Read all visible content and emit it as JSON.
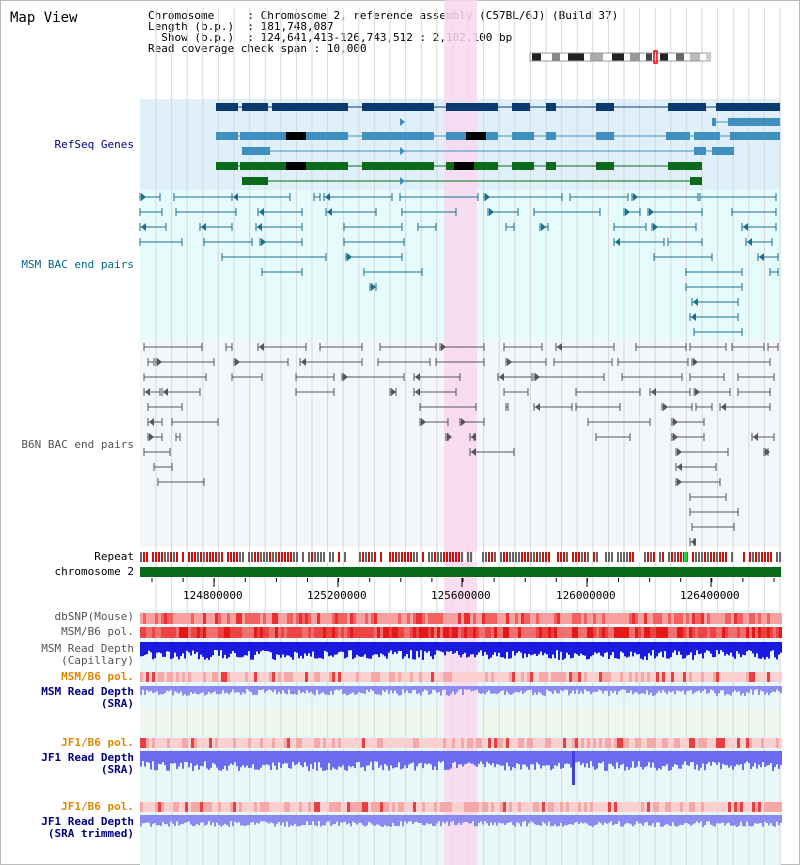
{
  "title": "Map View",
  "info": {
    "chromosome_label": "Chromosome",
    "chromosome_value": "Chromosome 2, reference assembly (C57BL/6J) (Build 37)",
    "length_label": "Length (b.p.)",
    "length_value": "181,748,087",
    "show_label": "Show (b.p.)",
    "show_value": "124,641,413-126,743,512 : 2,102,100 bp",
    "coverage_label": "Read coverage check span",
    "coverage_value": "10,000"
  },
  "tracks": {
    "refseq": "RefSeq Genes",
    "msm_bac": "MSM BAC end pairs",
    "b6n_bac": "B6N BAC end pairs",
    "repeat": "Repeat",
    "chromosome": "chromosome 2",
    "dbsnp": "dbSNP(Mouse)",
    "msm_b6_pol": "MSM/B6 pol.",
    "msm_depth_cap_1": "MSM Read Depth",
    "msm_depth_cap_2": "(Capillary)",
    "msm_b6_pol_2": "MSM/B6 pol.",
    "msm_depth_sra_1": "MSM Read Depth",
    "msm_depth_sra_2": "(SRA)",
    "jf1_b6_pol": "JF1/B6 pol.",
    "jf1_depth_sra_1": "JF1 Read Depth",
    "jf1_depth_sra_2": "(SRA)",
    "jf1_b6_pol_2": "JF1/B6 pol.",
    "jf1_depth_trim_1": "JF1 Read Depth",
    "jf1_depth_trim_2": "(SRA trimmed)"
  },
  "axis_ticks": [
    "124800000",
    "125200000",
    "125600000",
    "126000000",
    "126400000"
  ],
  "colors": {
    "refseq_bg": "#dff0fb",
    "msm_bg": "#e6fbfb",
    "b6n_bg": "#f3f6fb",
    "highlight": "#f8d8f0",
    "refseq_dark": "#0b3a6e",
    "refseq_mid": "#3f8fbf",
    "refseq_green": "#0a6a1a",
    "msm_line": "#1c6f8c",
    "b6n_line": "#555555",
    "chrom_green": "#0b6a1a",
    "label_navy": "#000080",
    "label_orange": "#dd8800",
    "label_teal": "#006688"
  }
}
